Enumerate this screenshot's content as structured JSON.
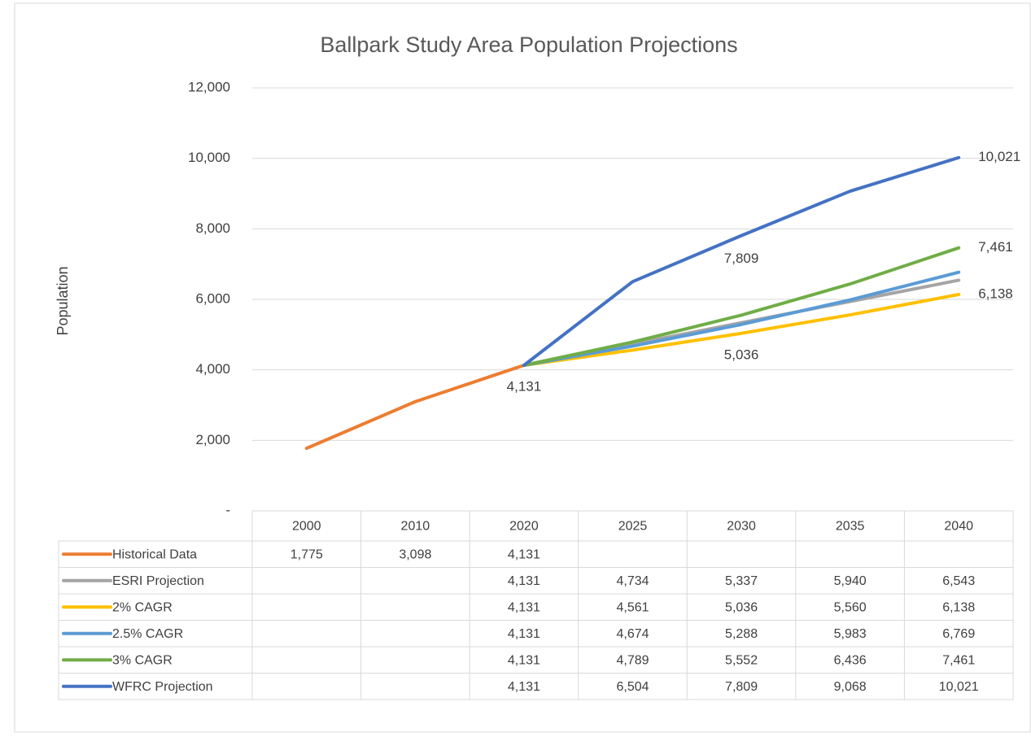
{
  "chart_data": {
    "type": "line",
    "title": "Ballpark Study Area Population Projections",
    "y_label": "Population",
    "categories": [
      "2000",
      "2010",
      "2020",
      "2025",
      "2030",
      "2035",
      "2040"
    ],
    "series": [
      {
        "name": "Historical Data",
        "color": "#ED7D31",
        "values": [
          1775,
          3098,
          4131,
          null,
          null,
          null,
          null
        ],
        "value_labels": [
          "1,775",
          "3,098",
          "4,131",
          null,
          null,
          null,
          null
        ]
      },
      {
        "name": "ESRI Projection",
        "color": "#A5A5A5",
        "values": [
          null,
          null,
          4131,
          4734,
          5337,
          5940,
          6543
        ],
        "value_labels": [
          null,
          null,
          "4,131",
          "4,734",
          "5,337",
          "5,940",
          "6,543"
        ]
      },
      {
        "name": "2% CAGR",
        "color": "#FFC000",
        "values": [
          null,
          null,
          4131,
          4561,
          5036,
          5560,
          6138
        ],
        "value_labels": [
          null,
          null,
          "4,131",
          "4,561",
          "5,036",
          "5,560",
          "6,138"
        ]
      },
      {
        "name": "2.5% CAGR",
        "color": "#5B9BD5",
        "values": [
          null,
          null,
          4131,
          4674,
          5288,
          5983,
          6769
        ],
        "value_labels": [
          null,
          null,
          "4,131",
          "4,674",
          "5,288",
          "5,983",
          "6,769"
        ]
      },
      {
        "name": "3% CAGR",
        "color": "#70AD47",
        "values": [
          null,
          null,
          4131,
          4789,
          5552,
          6436,
          7461
        ],
        "value_labels": [
          null,
          null,
          "4,131",
          "4,789",
          "5,552",
          "6,436",
          "7,461"
        ]
      },
      {
        "name": "WFRC Projection",
        "color": "#4472C4",
        "values": [
          null,
          null,
          4131,
          6504,
          7809,
          9068,
          10021
        ],
        "value_labels": [
          null,
          null,
          "4,131",
          "6,504",
          "7,809",
          "9,068",
          "10,021"
        ]
      }
    ],
    "ylim": [
      0,
      12000
    ],
    "yticks": [
      {
        "value": 0,
        "label": "-"
      },
      {
        "value": 2000,
        "label": "2,000"
      },
      {
        "value": 4000,
        "label": "4,000"
      },
      {
        "value": 6000,
        "label": "6,000"
      },
      {
        "value": 8000,
        "label": "8,000"
      },
      {
        "value": 10000,
        "label": "10,000"
      },
      {
        "value": 12000,
        "label": "12,000"
      }
    ],
    "grid": true
  }
}
